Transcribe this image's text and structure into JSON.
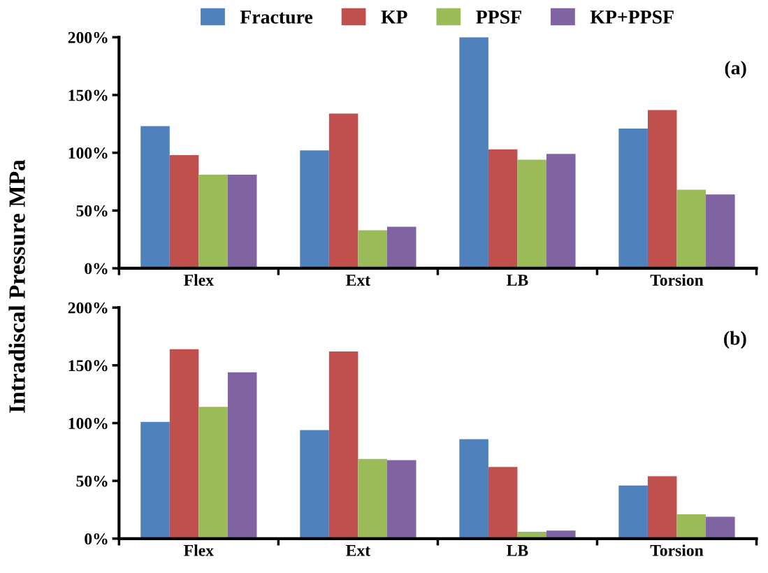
{
  "chart_data": [
    {
      "type": "bar",
      "ylabel": "Intradiscal Pressure MPa",
      "annotations": [
        "(a)"
      ],
      "categories": [
        "Flex",
        "Ext",
        "LB",
        "Torsion"
      ],
      "series": [
        {
          "name": "Fracture",
          "color": "#4f81bd",
          "values": [
            123,
            102,
            200,
            121
          ]
        },
        {
          "name": "KP",
          "color": "#c0504d",
          "values": [
            98,
            134,
            103,
            137
          ]
        },
        {
          "name": "PPSF",
          "color": "#9bbb59",
          "values": [
            81,
            33,
            94,
            68
          ]
        },
        {
          "name": "KP+PPSF",
          "color": "#8064a2",
          "values": [
            81,
            36,
            99,
            64
          ]
        }
      ],
      "ylim": [
        0,
        200
      ],
      "yticks": [
        {
          "value": 0,
          "label": "0%"
        },
        {
          "value": 50,
          "label": "50%"
        },
        {
          "value": 100,
          "label": "100%"
        },
        {
          "value": 150,
          "label": "150%"
        },
        {
          "value": 200,
          "label": "200%"
        }
      ],
      "grid": false,
      "legend": "top"
    },
    {
      "type": "bar",
      "annotations": [
        "(b)"
      ],
      "categories": [
        "Flex",
        "Ext",
        "LB",
        "Torsion"
      ],
      "series": [
        {
          "color": "#4f81bd",
          "values": [
            101,
            94,
            86,
            46
          ]
        },
        {
          "color": "#c0504d",
          "values": [
            164,
            162,
            62,
            54
          ]
        },
        {
          "color": "#9bbb59",
          "values": [
            114,
            69,
            6,
            21
          ]
        },
        {
          "color": "#8064a2",
          "values": [
            144,
            68,
            7,
            19
          ]
        }
      ],
      "ylim": [
        0,
        200
      ],
      "yticks": [
        {
          "value": 0,
          "label": "0%"
        },
        {
          "value": 50,
          "label": "50%"
        },
        {
          "value": 100,
          "label": "100%"
        },
        {
          "value": 150,
          "label": "150%"
        },
        {
          "value": 200,
          "label": "200%"
        }
      ],
      "grid": false
    }
  ]
}
